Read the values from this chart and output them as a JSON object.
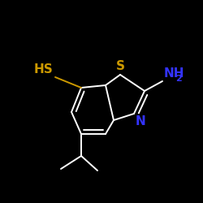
{
  "bg_color": "#000000",
  "bond_color": "#ffffff",
  "S_color": "#cc9900",
  "N_color": "#3333ff",
  "HS_label": "HS",
  "S_label": "S",
  "N_label": "N",
  "NH2_label": "NH",
  "NH2_sub": "2",
  "font_size": 11,
  "font_size_sub": 8,
  "lw": 1.4
}
